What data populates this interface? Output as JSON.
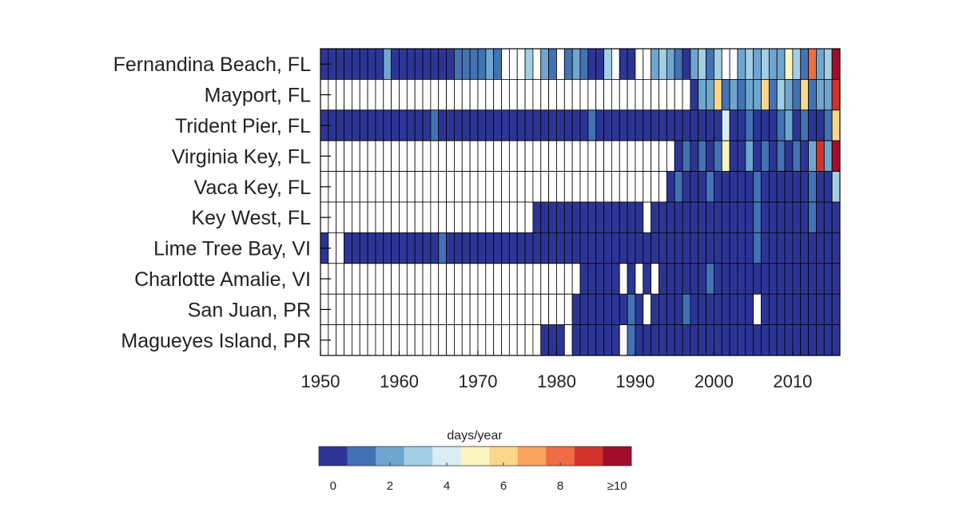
{
  "chart_data": {
    "type": "heatmap",
    "colorbar_title": "days/year",
    "rows": [
      "Fernandina Beach, FL",
      "Mayport, FL",
      "Trident Pier, FL",
      "Virginia Key, FL",
      "Vaca Key, FL",
      "Key West, FL",
      "Lime Tree Bay, VI",
      "Charlotte Amalie, VI",
      "San Juan, PR",
      "Magueyes Island, PR"
    ],
    "x_ticks": [
      "1950",
      "1960",
      "1970",
      "1980",
      "1990",
      "2000",
      "2010"
    ],
    "years": [
      1950,
      2015
    ],
    "colorbar_ticks": [
      "0",
      "2",
      "4",
      "6",
      "8",
      "≥10"
    ],
    "color_levels": [
      "#2c3595",
      "#4372b5",
      "#6ea6d0",
      "#a2cfe5",
      "#d8eef4",
      "#fbf6bf",
      "#fcd78b",
      "#f9a45f",
      "#ef6c44",
      "#d3322c",
      "#a00e2c"
    ],
    "missing_color": "#ffffff",
    "data": [
      {
        "start": 1950,
        "end": 2015,
        "default": 0,
        "missing": [
          1973,
          1974,
          1975,
          1977,
          1980,
          1987,
          1990,
          1991,
          2001,
          2002
        ],
        "values": {
          "1958": 2,
          "1967": 1,
          "1968": 1,
          "1969": 1,
          "1970": 1,
          "1971": 2,
          "1972": 1,
          "1976": 3,
          "1978": 2,
          "1979": 1,
          "1981": 1,
          "1982": 2,
          "1983": 1,
          "1986": 3,
          "1992": 2,
          "1993": 3,
          "1994": 2,
          "1995": 1,
          "1997": 2,
          "1998": 3,
          "1999": 1,
          "2000": 3,
          "2003": 2,
          "2004": 3,
          "2005": 2,
          "2006": 3,
          "2007": 2,
          "2008": 2,
          "2009": 5,
          "2010": 3,
          "2011": 1,
          "2012": 8,
          "2013": 2,
          "2014": 3,
          "2015": 10
        }
      },
      {
        "start": 1950,
        "end": 2015,
        "default": 0,
        "missing": [
          1950,
          1951,
          1952,
          1953,
          1954,
          1955,
          1956,
          1957,
          1958,
          1959,
          1960,
          1961,
          1962,
          1963,
          1964,
          1965,
          1966,
          1967,
          1968,
          1969,
          1970,
          1971,
          1972,
          1973,
          1974,
          1975,
          1976,
          1977,
          1978,
          1979,
          1980,
          1981,
          1982,
          1983,
          1984,
          1985,
          1986,
          1987,
          1988,
          1989,
          1990,
          1991,
          1992,
          1993,
          1994,
          1995,
          1996
        ],
        "values": {
          "1998": 2,
          "1999": 2,
          "2000": 6,
          "2001": 1,
          "2002": 2,
          "2003": 1,
          "2004": 2,
          "2005": 2,
          "2006": 6,
          "2007": 1,
          "2008": 3,
          "2009": 2,
          "2010": 1,
          "2011": 6,
          "2012": 1,
          "2013": 2,
          "2014": 2,
          "2015": 9
        }
      },
      {
        "start": 1950,
        "end": 2015,
        "default": 0,
        "missing": [],
        "values": {
          "1964": 1,
          "1984": 1,
          "2001": 4,
          "2004": 1,
          "2008": 1,
          "2009": 2,
          "2011": 1,
          "2014": 1,
          "2015": 6
        }
      },
      {
        "start": 1950,
        "end": 2015,
        "default": 0,
        "missing": [
          1950,
          1951,
          1952,
          1953,
          1954,
          1955,
          1956,
          1957,
          1958,
          1959,
          1960,
          1961,
          1962,
          1963,
          1964,
          1965,
          1966,
          1967,
          1968,
          1969,
          1970,
          1971,
          1972,
          1973,
          1974,
          1975,
          1976,
          1977,
          1978,
          1979,
          1980,
          1981,
          1982,
          1983,
          1984,
          1985,
          1986,
          1987,
          1988,
          1989,
          1990,
          1991,
          1992,
          1993,
          1994
        ],
        "values": {
          "1996": 1,
          "1998": 1,
          "2000": 1,
          "2001": 5,
          "2004": 2,
          "2006": 1,
          "2008": 1,
          "2010": 1,
          "2012": 2,
          "2013": 9,
          "2014": 2,
          "2015": 10
        }
      },
      {
        "start": 1950,
        "end": 2015,
        "default": 0,
        "missing": [
          1950,
          1951,
          1952,
          1953,
          1954,
          1955,
          1956,
          1957,
          1958,
          1959,
          1960,
          1961,
          1962,
          1963,
          1964,
          1965,
          1966,
          1967,
          1968,
          1969,
          1970,
          1971,
          1972,
          1973,
          1974,
          1975,
          1976,
          1977,
          1978,
          1979,
          1980,
          1981,
          1982,
          1983,
          1984,
          1985,
          1986,
          1987,
          1988,
          1989,
          1990,
          1991,
          1992,
          1993
        ],
        "values": {
          "1995": 1,
          "1999": 1,
          "2005": 1,
          "2012": 1,
          "2015": 3
        }
      },
      {
        "start": 1950,
        "end": 2015,
        "default": 0,
        "missing": [
          1950,
          1951,
          1952,
          1953,
          1954,
          1955,
          1956,
          1957,
          1958,
          1959,
          1960,
          1961,
          1962,
          1963,
          1964,
          1965,
          1966,
          1967,
          1968,
          1969,
          1970,
          1971,
          1972,
          1973,
          1974,
          1975,
          1976,
          1991
        ],
        "values": {
          "2005": 1,
          "2012": 1
        }
      },
      {
        "start": 1950,
        "end": 2015,
        "default": 0,
        "missing": [
          1951,
          1952
        ],
        "values": {
          "1965": 1,
          "2005": 1
        }
      },
      {
        "start": 1950,
        "end": 2015,
        "default": 0,
        "missing": [
          1950,
          1951,
          1952,
          1953,
          1954,
          1955,
          1956,
          1957,
          1958,
          1959,
          1960,
          1961,
          1962,
          1963,
          1964,
          1965,
          1966,
          1967,
          1968,
          1969,
          1970,
          1971,
          1972,
          1973,
          1974,
          1975,
          1976,
          1977,
          1978,
          1979,
          1980,
          1981,
          1982,
          1988,
          1990,
          1992
        ],
        "values": {
          "1999": 1
        }
      },
      {
        "start": 1950,
        "end": 2015,
        "default": 0,
        "missing": [
          1950,
          1951,
          1952,
          1953,
          1954,
          1955,
          1956,
          1957,
          1958,
          1959,
          1960,
          1961,
          1962,
          1963,
          1964,
          1965,
          1966,
          1967,
          1968,
          1969,
          1970,
          1971,
          1972,
          1973,
          1974,
          1975,
          1976,
          1977,
          1978,
          1979,
          1980,
          1981,
          1991,
          2005
        ],
        "values": {
          "1989": 1,
          "1996": 1
        }
      },
      {
        "start": 1950,
        "end": 2015,
        "default": 0,
        "missing": [
          1950,
          1951,
          1952,
          1953,
          1954,
          1955,
          1956,
          1957,
          1958,
          1959,
          1960,
          1961,
          1962,
          1963,
          1964,
          1965,
          1966,
          1967,
          1968,
          1969,
          1970,
          1971,
          1972,
          1973,
          1974,
          1975,
          1976,
          1977,
          1981,
          1988
        ],
        "values": {
          "1989": 1
        }
      }
    ]
  }
}
